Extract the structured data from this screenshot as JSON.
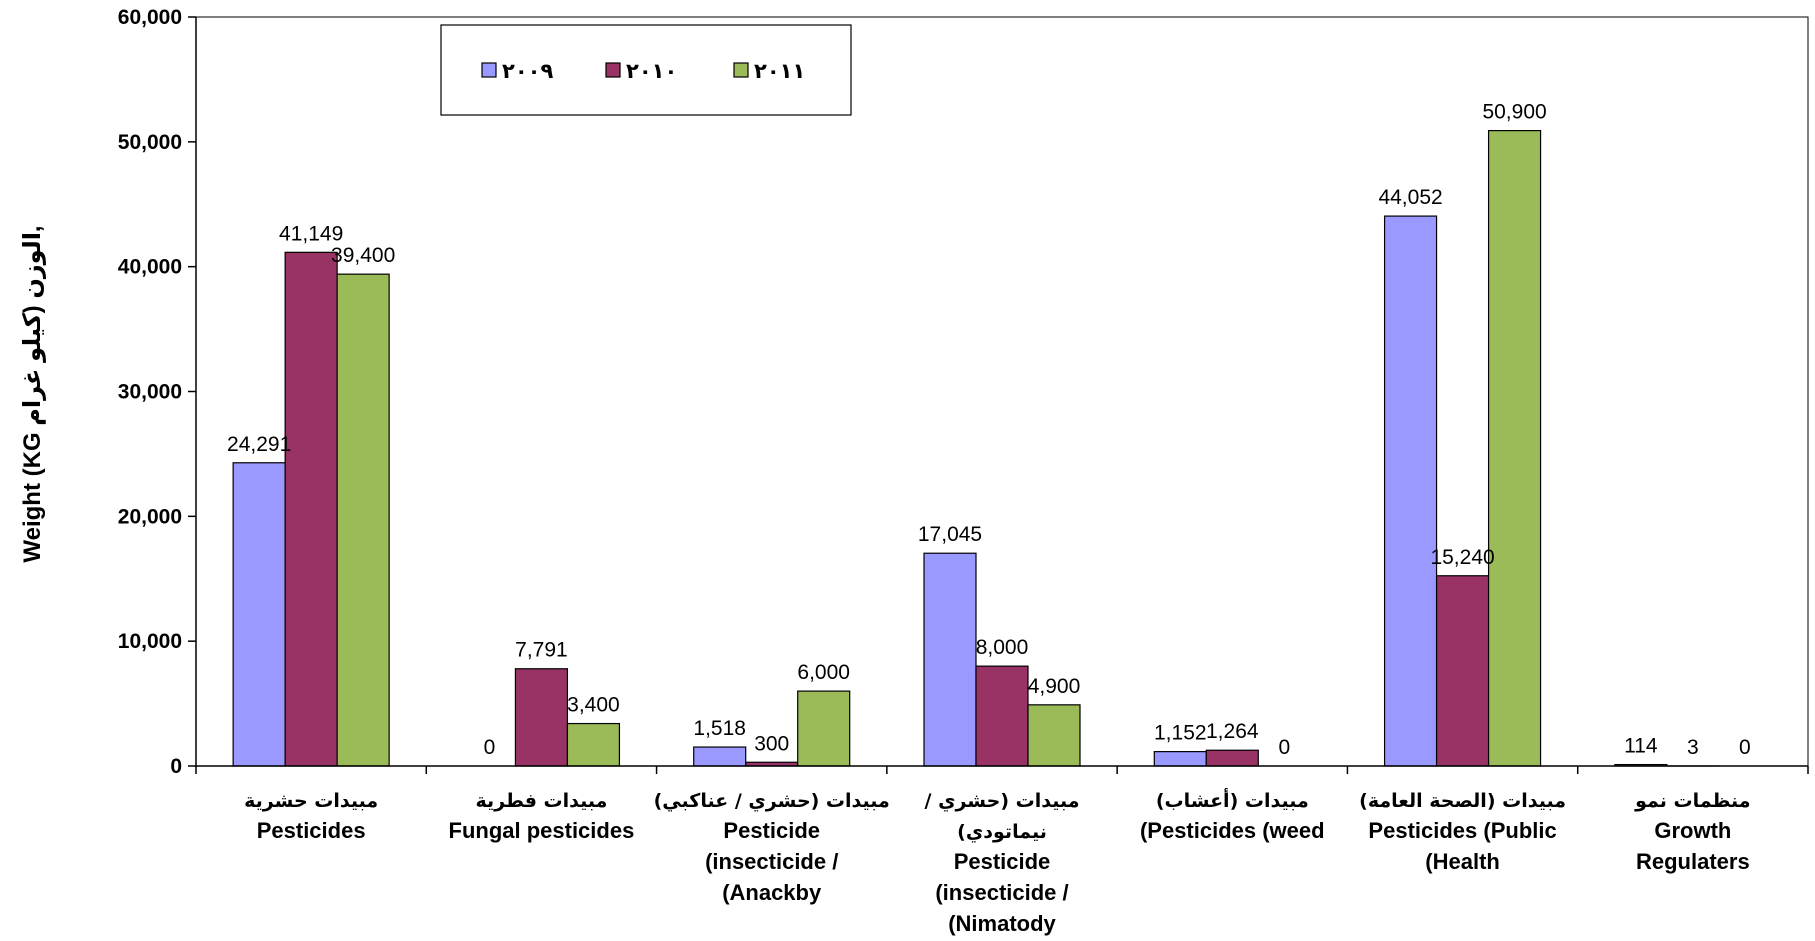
{
  "chart_data": {
    "type": "bar",
    "ylabel": "Weight (KG الوزن (كيلو غرام,",
    "ylim": [
      0,
      60000
    ],
    "yticks": [
      "0",
      "10,000",
      "20,000",
      "30,000",
      "40,000",
      "50,000",
      "60,000"
    ],
    "ytick_values": [
      0,
      10000,
      20000,
      30000,
      40000,
      50000,
      60000
    ],
    "grid": false,
    "legend_position": "top-left",
    "categories": [
      {
        "ar": "مبيدات حشرية",
        "en": [
          "Pesticides"
        ]
      },
      {
        "ar": "مبيدات فطرية",
        "en": [
          "Fungal pesticides"
        ]
      },
      {
        "ar": "مبيدات (حشري / عناكبي)",
        "en": [
          "Pesticide",
          "(insecticide /",
          "(Anackby"
        ]
      },
      {
        "ar": "مبيدات (حشري /",
        "ar2": "نيماتودي)",
        "en": [
          "Pesticide",
          "(insecticide /",
          "(Nimatody"
        ]
      },
      {
        "ar": "مبيدات (أعشاب)",
        "en": [
          "(Pesticides (weed"
        ]
      },
      {
        "ar": "مبيدات (الصحة العامة)",
        "en": [
          "Pesticides (Public",
          "(Health"
        ]
      },
      {
        "ar": "منظمات نمو",
        "en": [
          "Growth",
          "Regulaters"
        ]
      }
    ],
    "series": [
      {
        "name": "٢٠٠٩",
        "color": "#9999FF",
        "values": [
          24291,
          0,
          1518,
          17045,
          1152,
          44052,
          114
        ],
        "labels": [
          "24,291",
          "0",
          "1,518",
          "17,045",
          "1,152",
          "44,052",
          "114"
        ]
      },
      {
        "name": "٢٠١٠",
        "color": "#993366",
        "values": [
          41149,
          7791,
          300,
          8000,
          1264,
          15240,
          3
        ],
        "labels": [
          "41,149",
          "7,791",
          "300",
          "8,000",
          "1,264",
          "15,240",
          "3"
        ]
      },
      {
        "name": "٢٠١١",
        "color": "#9BBB59",
        "values": [
          39400,
          3400,
          6000,
          4900,
          0,
          50900,
          0
        ],
        "labels": [
          "39,400",
          "3,400",
          "6,000",
          "4,900",
          "0",
          "50,900",
          "0"
        ]
      }
    ]
  }
}
